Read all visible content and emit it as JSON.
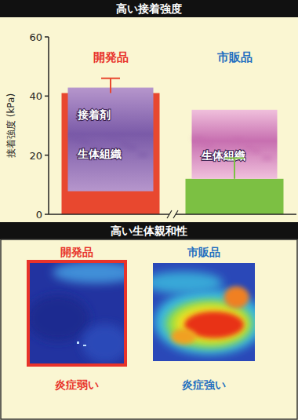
{
  "chart_data": {
    "type": "bar",
    "title": "高い接着強度",
    "y_label": "接着強度 (kPa)",
    "categories": [
      "開発品",
      "市販品"
    ],
    "values": [
      41,
      12
    ],
    "errors": [
      5,
      7
    ],
    "colors": [
      "#e8482f",
      "#7cc043"
    ],
    "ylim": [
      0,
      60
    ],
    "yticks": [
      0,
      20,
      40,
      60
    ],
    "grid": false,
    "annotations": [
      {
        "category": "開発品",
        "texts": [
          "接着剤",
          "生体組織"
        ]
      },
      {
        "category": "市販品",
        "texts": [
          "生体組織"
        ]
      }
    ]
  },
  "panel2": {
    "title": "高い生体親和性",
    "items": [
      {
        "label": "開発品",
        "caption": "炎症弱い"
      },
      {
        "label": "市販品",
        "caption": "炎症強い"
      }
    ]
  }
}
